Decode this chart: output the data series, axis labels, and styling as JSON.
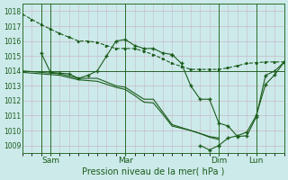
{
  "xlabel": "Pression niveau de la mer( hPa )",
  "bg_color": "#cceaea",
  "grid_color": "#c8b8c8",
  "line_color": "#1a5c1a",
  "xlim": [
    0,
    168
  ],
  "ylim": [
    1008.5,
    1018.5
  ],
  "yticks": [
    1009,
    1010,
    1011,
    1012,
    1013,
    1014,
    1015,
    1016,
    1017,
    1018
  ],
  "xtick_positions": [
    18,
    66,
    126,
    150
  ],
  "xtick_labels": [
    "Sam",
    "Mar",
    "Dim",
    "Lun"
  ],
  "vlines": [
    12,
    18,
    66,
    126,
    150
  ],
  "series": [
    {
      "x": [
        0,
        6,
        12,
        18,
        24,
        30,
        36,
        42,
        48,
        54,
        60,
        66,
        72,
        78,
        84,
        90,
        96,
        102,
        108,
        114,
        120,
        126,
        132,
        138,
        144,
        150,
        156,
        162,
        168
      ],
      "y": [
        1017.8,
        1017.45,
        1017.1,
        1016.8,
        1016.5,
        1016.25,
        1016.0,
        1016.0,
        1015.9,
        1015.7,
        1015.5,
        1015.5,
        1015.5,
        1015.3,
        1015.1,
        1014.8,
        1014.5,
        1014.3,
        1014.1,
        1014.1,
        1014.1,
        1014.1,
        1014.2,
        1014.35,
        1014.5,
        1014.55,
        1014.6,
        1014.6,
        1014.6
      ],
      "marker": true,
      "dashed": true
    },
    {
      "x": [
        12,
        18,
        24,
        30,
        36,
        42,
        48,
        54,
        60,
        66,
        72,
        78,
        84,
        90,
        96
      ],
      "y": [
        1015.2,
        1013.9,
        1013.85,
        1013.8,
        1013.5,
        1013.7,
        1014.0,
        1015.0,
        1016.0,
        1016.1,
        1015.7,
        1015.5,
        1015.5,
        1015.2,
        1015.1
      ],
      "marker": true,
      "dashed": false
    },
    {
      "x": [
        0,
        6,
        12,
        18,
        24,
        30,
        36,
        42,
        48,
        54,
        60,
        66,
        72,
        78,
        84,
        90,
        96,
        102,
        108,
        114,
        120,
        126
      ],
      "y": [
        1014.0,
        1013.95,
        1013.9,
        1013.85,
        1013.8,
        1013.65,
        1013.5,
        1013.5,
        1013.5,
        1013.25,
        1013.0,
        1012.9,
        1012.5,
        1012.1,
        1012.1,
        1011.25,
        1010.4,
        1010.2,
        1010.0,
        1009.8,
        1009.6,
        1009.5
      ],
      "marker": false,
      "dashed": false
    },
    {
      "x": [
        0,
        6,
        12,
        18,
        24,
        30,
        36,
        42,
        48,
        54,
        60,
        66,
        72,
        78,
        84,
        90,
        96,
        102,
        108,
        114,
        120,
        126
      ],
      "y": [
        1013.9,
        1013.85,
        1013.8,
        1013.75,
        1013.7,
        1013.55,
        1013.4,
        1013.35,
        1013.3,
        1013.1,
        1012.9,
        1012.75,
        1012.35,
        1011.9,
        1011.85,
        1011.1,
        1010.3,
        1010.15,
        1010.0,
        1009.8,
        1009.55,
        1009.4
      ],
      "marker": false,
      "dashed": false
    },
    {
      "x": [
        96,
        102,
        108,
        114,
        120,
        126,
        132,
        138,
        144,
        150,
        156,
        162,
        168
      ],
      "y": [
        1015.1,
        1014.5,
        1013.0,
        1012.1,
        1012.1,
        1010.5,
        1010.3,
        1009.6,
        1009.65,
        1010.9,
        1013.7,
        1014.0,
        1014.6
      ],
      "marker": true,
      "dashed": false
    },
    {
      "x": [
        114,
        120,
        126
      ],
      "y": [
        1009.0,
        1008.7,
        1009.0
      ],
      "marker": true,
      "dashed": false
    },
    {
      "x": [
        126,
        132,
        138,
        144,
        150,
        156,
        162,
        168
      ],
      "y": [
        1009.0,
        1009.5,
        1009.65,
        1009.9,
        1011.0,
        1013.1,
        1013.75,
        1014.6
      ],
      "marker": true,
      "dashed": false
    }
  ]
}
